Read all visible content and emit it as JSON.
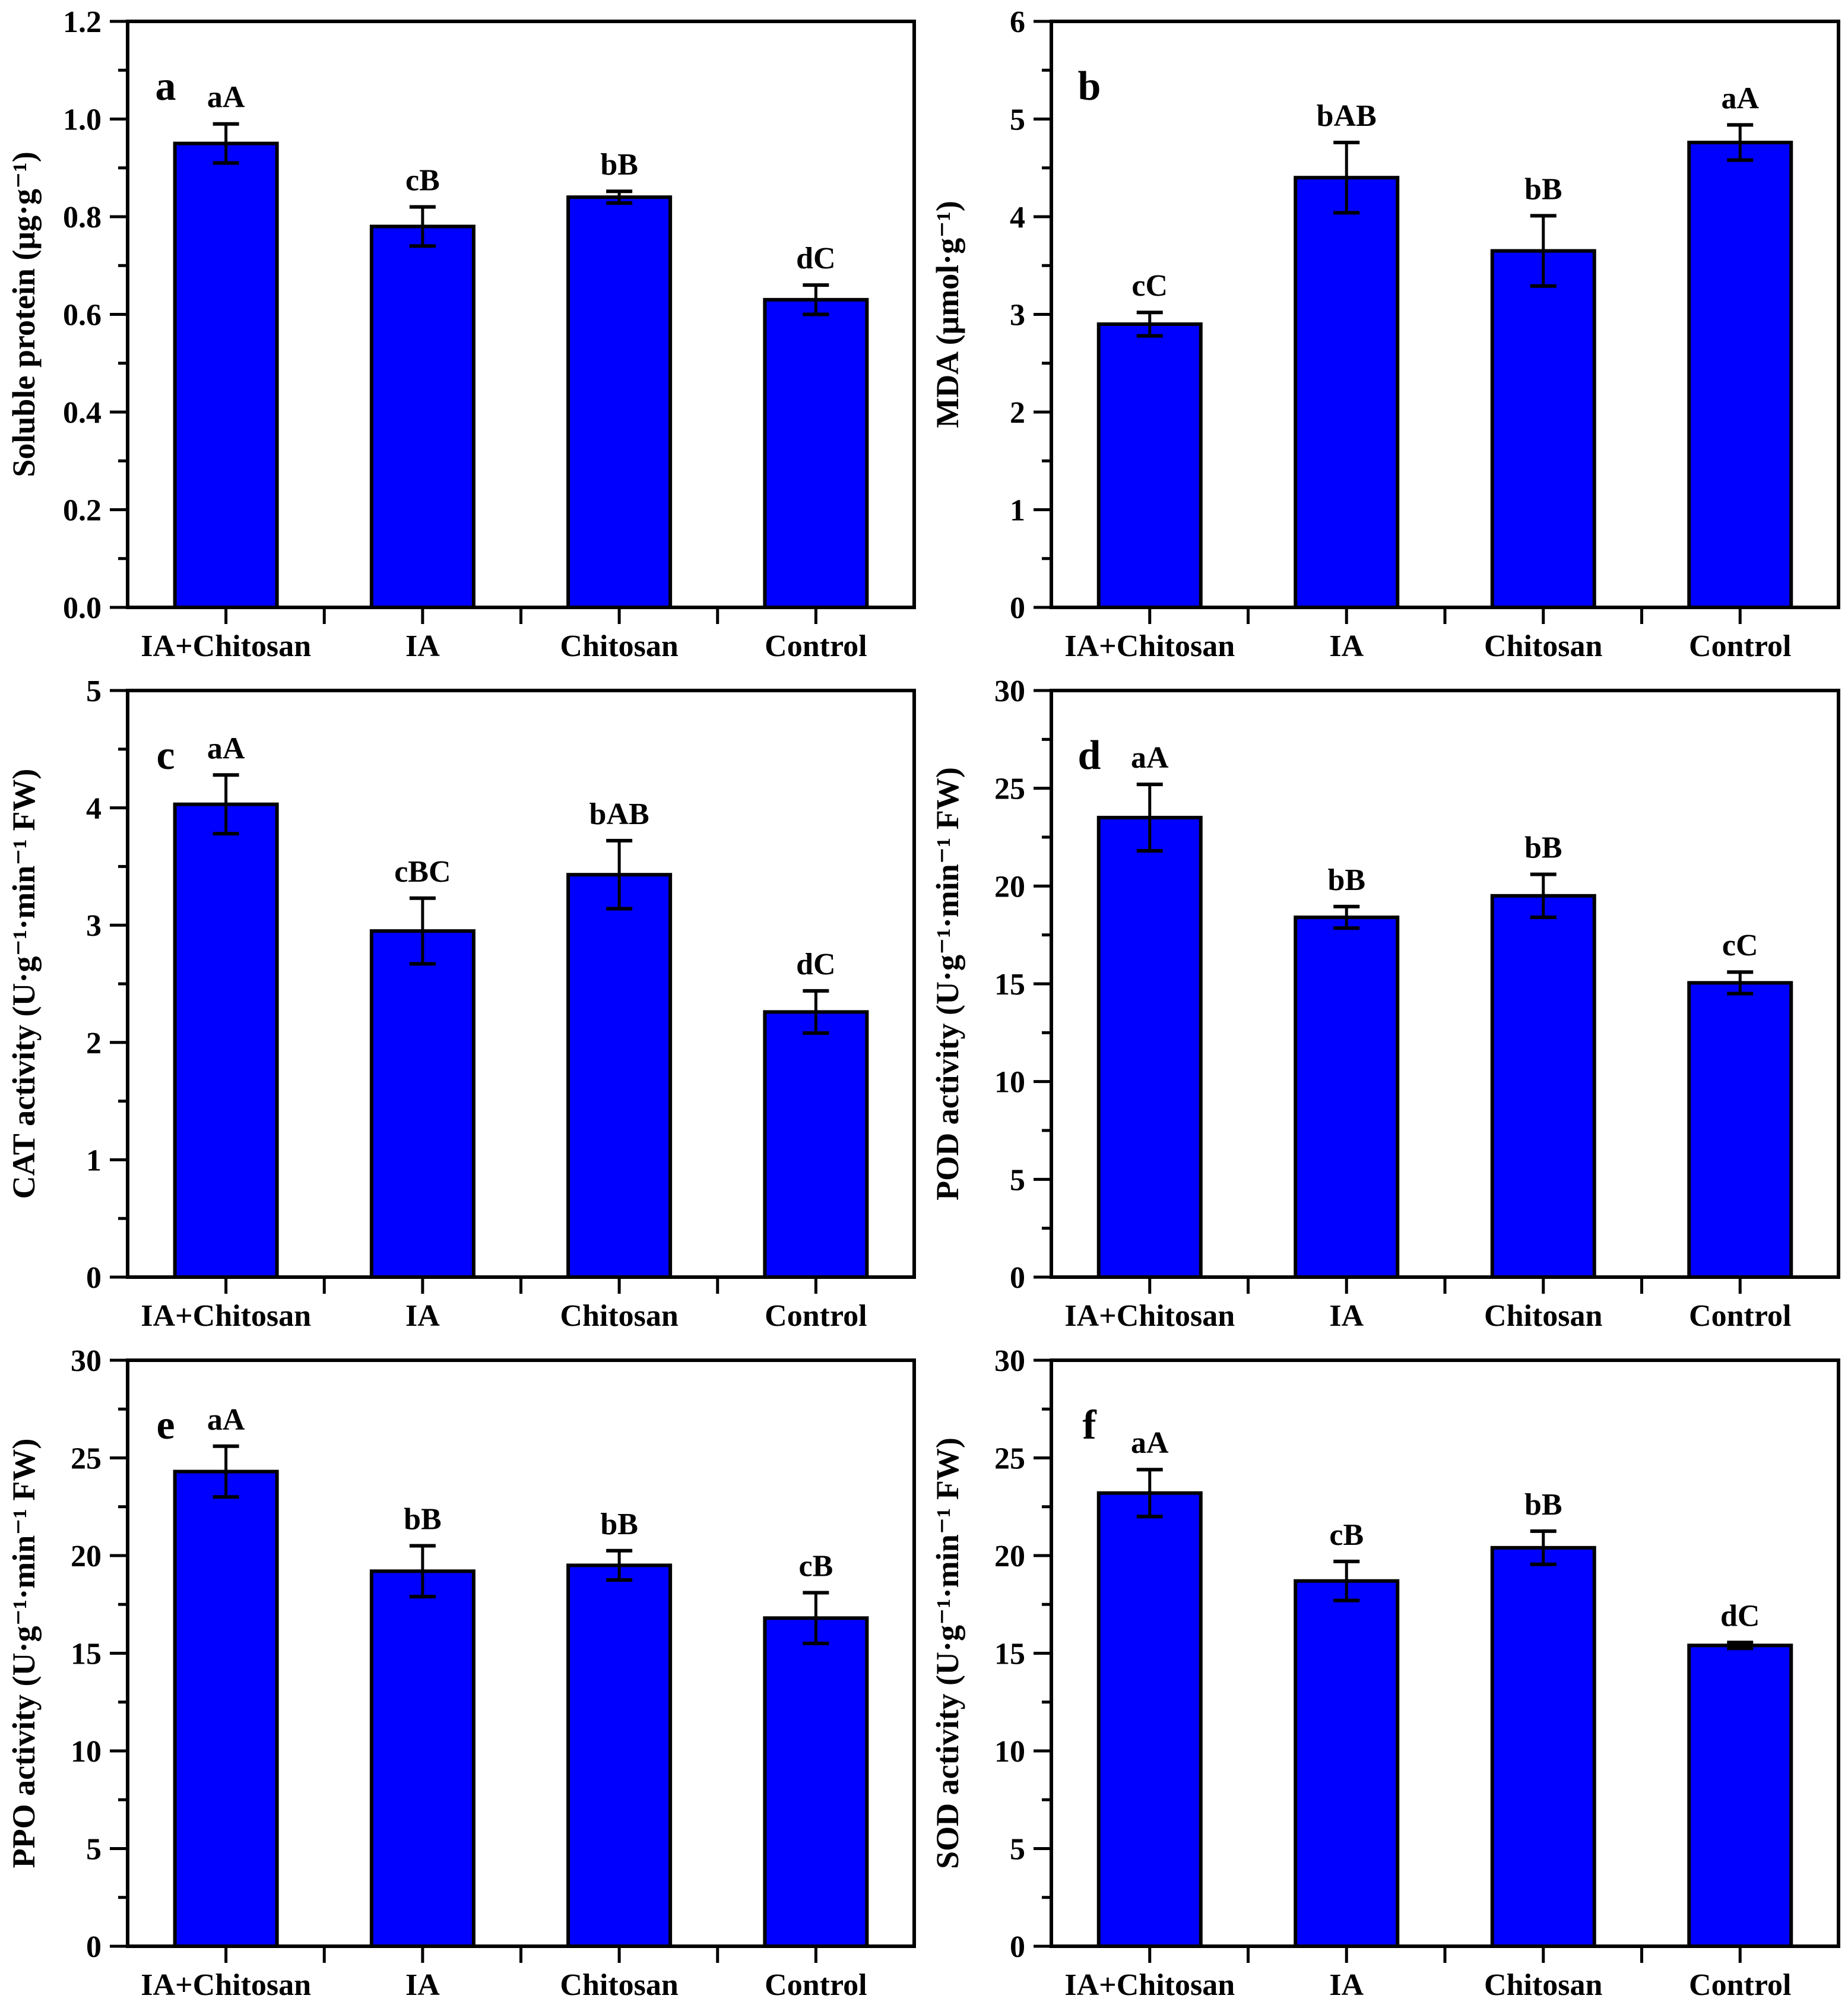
{
  "style": {
    "background_color": "#ffffff",
    "bar_fill_color": "#0000fe",
    "bar_edge_color": "#000000",
    "axis_color": "#000000",
    "text_color": "#000000"
  },
  "chart_data": [
    {
      "type": "bar",
      "panel_letter": "a",
      "categories": [
        "IA+Chitosan",
        "IA",
        "Chitosan",
        "Control"
      ],
      "values": [
        0.95,
        0.78,
        0.84,
        0.63
      ],
      "errors": [
        0.04,
        0.04,
        0.012,
        0.03
      ],
      "sig_labels": [
        "aA",
        "cB",
        "bB",
        "dC"
      ],
      "title": "",
      "xlabel": "",
      "ylabel": "Soluble protein (μg·g⁻¹)",
      "ylim": [
        0,
        1.2
      ],
      "ytick_step": 0.2,
      "ytick_labels": [
        "0.0",
        "0.2",
        "0.4",
        "0.6",
        "0.8",
        "1.0",
        "1.2"
      ],
      "minor_ticks_per_interval": 1,
      "grid": false,
      "legend": "none"
    },
    {
      "type": "bar",
      "panel_letter": "b",
      "categories": [
        "IA+Chitosan",
        "IA",
        "Chitosan",
        "Control"
      ],
      "values": [
        2.9,
        4.4,
        3.65,
        4.76
      ],
      "errors": [
        0.12,
        0.36,
        0.36,
        0.18
      ],
      "sig_labels": [
        "cC",
        "bAB",
        "bB",
        "aA"
      ],
      "title": "",
      "xlabel": "",
      "ylabel": "MDA (μmol·g⁻¹)",
      "ylim": [
        0,
        6
      ],
      "ytick_step": 1,
      "ytick_labels": [
        "0",
        "1",
        "2",
        "3",
        "4",
        "5",
        "6"
      ],
      "minor_ticks_per_interval": 1,
      "grid": false,
      "legend": "none"
    },
    {
      "type": "bar",
      "panel_letter": "c",
      "categories": [
        "IA+Chitosan",
        "IA",
        "Chitosan",
        "Control"
      ],
      "values": [
        4.03,
        2.95,
        3.43,
        2.26
      ],
      "errors": [
        0.25,
        0.28,
        0.29,
        0.18
      ],
      "sig_labels": [
        "aA",
        "cBC",
        "bAB",
        "dC"
      ],
      "title": "",
      "xlabel": "",
      "ylabel": "CAT activity (U·g⁻¹·min⁻¹ FW)",
      "ylim": [
        0,
        5
      ],
      "ytick_step": 1,
      "ytick_labels": [
        "0",
        "1",
        "2",
        "3",
        "4",
        "5"
      ],
      "minor_ticks_per_interval": 1,
      "grid": false,
      "legend": "none"
    },
    {
      "type": "bar",
      "panel_letter": "d",
      "categories": [
        "IA+Chitosan",
        "IA",
        "Chitosan",
        "Control"
      ],
      "values": [
        23.5,
        18.4,
        19.5,
        15.05
      ],
      "errors": [
        1.7,
        0.55,
        1.1,
        0.55
      ],
      "sig_labels": [
        "aA",
        "bB",
        "bB",
        "cC"
      ],
      "title": "",
      "xlabel": "",
      "ylabel": "POD activity (U·g⁻¹·min⁻¹ FW)",
      "ylim": [
        0,
        30
      ],
      "ytick_step": 5,
      "ytick_labels": [
        "0",
        "5",
        "10",
        "15",
        "20",
        "25",
        "30"
      ],
      "minor_ticks_per_interval": 1,
      "grid": false,
      "legend": "none"
    },
    {
      "type": "bar",
      "panel_letter": "e",
      "categories": [
        "IA+Chitosan",
        "IA",
        "Chitosan",
        "Control"
      ],
      "values": [
        24.3,
        19.2,
        19.5,
        16.8
      ],
      "errors": [
        1.3,
        1.3,
        0.75,
        1.3
      ],
      "sig_labels": [
        "aA",
        "bB",
        "bB",
        "cB"
      ],
      "title": "",
      "xlabel": "",
      "ylabel": "PPO activity (U·g⁻¹·min⁻¹ FW)",
      "ylim": [
        0,
        30
      ],
      "ytick_step": 5,
      "ytick_labels": [
        "0",
        "5",
        "10",
        "15",
        "20",
        "25",
        "30"
      ],
      "minor_ticks_per_interval": 1,
      "grid": false,
      "legend": "none"
    },
    {
      "type": "bar",
      "panel_letter": "f",
      "categories": [
        "IA+Chitosan",
        "IA",
        "Chitosan",
        "Control"
      ],
      "values": [
        23.2,
        18.7,
        20.4,
        15.4
      ],
      "errors": [
        1.2,
        1.0,
        0.85,
        0.15
      ],
      "sig_labels": [
        "aA",
        "cB",
        "bB",
        "dC"
      ],
      "title": "",
      "xlabel": "",
      "ylabel": "SOD activity (U·g⁻¹·min⁻¹ FW)",
      "ylim": [
        0,
        30
      ],
      "ytick_step": 5,
      "ytick_labels": [
        "0",
        "5",
        "10",
        "15",
        "20",
        "25",
        "30"
      ],
      "minor_ticks_per_interval": 1,
      "grid": false,
      "legend": "none"
    }
  ]
}
